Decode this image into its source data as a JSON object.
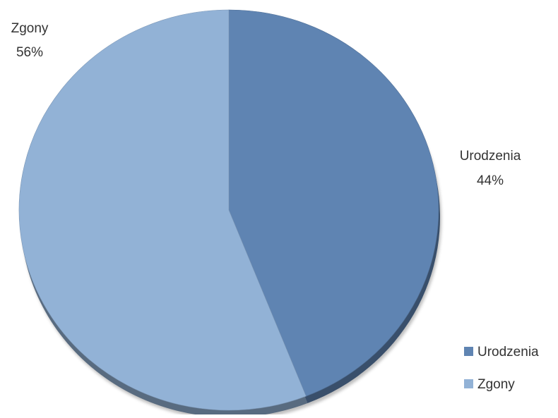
{
  "chart_data": {
    "type": "pie",
    "style": "3d-pie",
    "slices": [
      {
        "label": "Urodzenia",
        "value": 44,
        "display": "44%",
        "color": "#5f84b2"
      },
      {
        "label": "Zgony",
        "value": 56,
        "display": "56%",
        "color": "#92b2d6"
      }
    ],
    "legend": {
      "position": "bottom-right",
      "items": [
        "Urodzenia",
        "Zgony"
      ]
    }
  }
}
